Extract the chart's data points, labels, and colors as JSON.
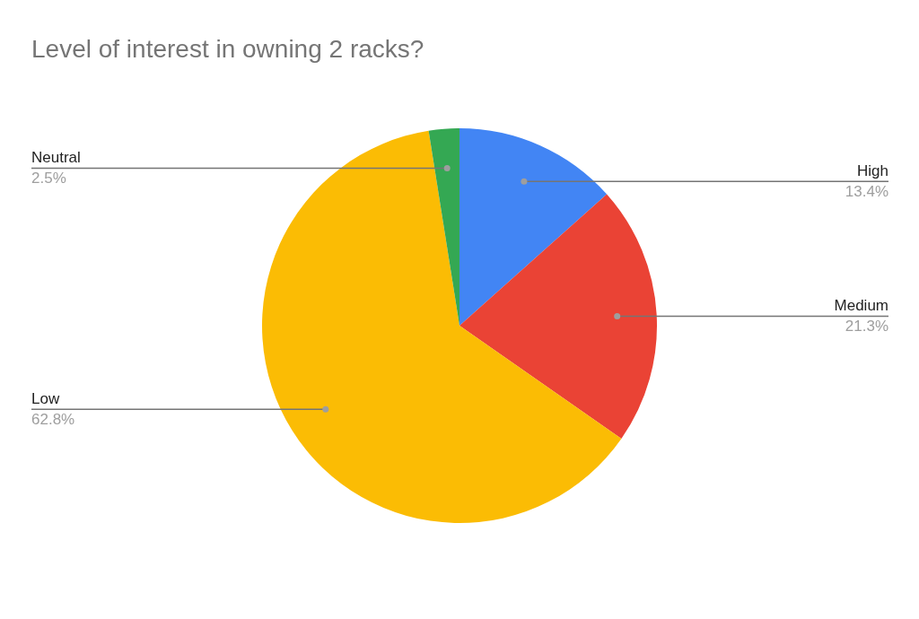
{
  "chart_data": {
    "type": "pie",
    "title": "Level of interest in owning 2 racks?",
    "categories": [
      "High",
      "Medium",
      "Low",
      "Neutral"
    ],
    "values": [
      13.4,
      21.3,
      62.8,
      2.5
    ],
    "colors": [
      "#4285f4",
      "#ea4335",
      "#fbbc04",
      "#34a853"
    ],
    "value_labels": [
      "13.4%",
      "21.3%",
      "62.8%",
      "2.5%"
    ]
  }
}
